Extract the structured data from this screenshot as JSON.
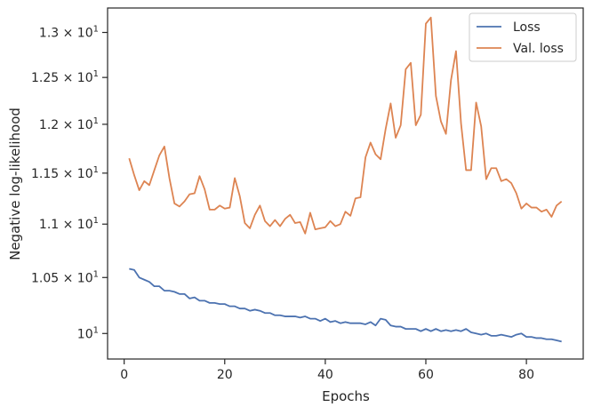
{
  "chart_data": {
    "type": "line",
    "title": "",
    "xlabel": "Epochs",
    "ylabel": "Negative log-likelihood",
    "yscale": "log",
    "xlim": [
      -3.3,
      91.3
    ],
    "ylim": [
      9.78,
      13.28
    ],
    "xticks": [
      0,
      20,
      40,
      60,
      80
    ],
    "xtick_labels": [
      "0",
      "20",
      "40",
      "60",
      "80"
    ],
    "yticks": [
      10.0,
      10.5,
      11.0,
      11.5,
      12.0,
      12.5,
      13.0
    ],
    "ytick_labels": [
      "10^1",
      "1.05 × 10^1",
      "1.1 × 10^1",
      "1.15 × 10^1",
      "1.2 × 10^1",
      "1.25 × 10^1",
      "1.3 × 10^1"
    ],
    "grid": false,
    "legend_position": "top-right",
    "x": [
      1,
      2,
      3,
      4,
      5,
      6,
      7,
      8,
      9,
      10,
      11,
      12,
      13,
      14,
      15,
      16,
      17,
      18,
      19,
      20,
      21,
      22,
      23,
      24,
      25,
      26,
      27,
      28,
      29,
      30,
      31,
      32,
      33,
      34,
      35,
      36,
      37,
      38,
      39,
      40,
      41,
      42,
      43,
      44,
      45,
      46,
      47,
      48,
      49,
      50,
      51,
      52,
      53,
      54,
      55,
      56,
      57,
      58,
      59,
      60,
      61,
      62,
      63,
      64,
      65,
      66,
      67,
      68,
      69,
      70,
      71,
      72,
      73,
      74,
      75,
      76,
      77,
      78,
      79,
      80,
      81,
      82,
      83,
      84,
      85,
      86,
      87
    ],
    "series": [
      {
        "name": "Loss",
        "color": "#4c72b0",
        "values": [
          10.58,
          10.57,
          10.5,
          10.48,
          10.46,
          10.42,
          10.42,
          10.38,
          10.38,
          10.37,
          10.35,
          10.35,
          10.31,
          10.32,
          10.29,
          10.29,
          10.27,
          10.27,
          10.26,
          10.26,
          10.24,
          10.24,
          10.22,
          10.22,
          10.2,
          10.21,
          10.2,
          10.18,
          10.18,
          10.16,
          10.16,
          10.15,
          10.15,
          10.15,
          10.14,
          10.15,
          10.13,
          10.13,
          10.11,
          10.13,
          10.1,
          10.11,
          10.09,
          10.1,
          10.09,
          10.09,
          10.09,
          10.08,
          10.1,
          10.07,
          10.13,
          10.12,
          10.07,
          10.06,
          10.06,
          10.04,
          10.04,
          10.04,
          10.02,
          10.04,
          10.02,
          10.04,
          10.02,
          10.03,
          10.02,
          10.03,
          10.02,
          10.04,
          10.01,
          10.0,
          9.99,
          10.0,
          9.98,
          9.98,
          9.99,
          9.98,
          9.97,
          9.99,
          10.0,
          9.97,
          9.97,
          9.96,
          9.96,
          9.95,
          9.95,
          9.94,
          9.93
        ]
      },
      {
        "name": "Val. loss",
        "color": "#dd8452",
        "values": [
          11.65,
          11.48,
          11.33,
          11.42,
          11.38,
          11.53,
          11.68,
          11.77,
          11.45,
          11.2,
          11.17,
          11.22,
          11.29,
          11.3,
          11.47,
          11.34,
          11.14,
          11.14,
          11.18,
          11.15,
          11.16,
          11.45,
          11.27,
          11.01,
          10.96,
          11.09,
          11.18,
          11.03,
          10.98,
          11.04,
          10.98,
          11.05,
          11.09,
          11.01,
          11.02,
          10.91,
          11.11,
          10.95,
          10.96,
          10.97,
          11.03,
          10.98,
          11.0,
          11.12,
          11.08,
          11.25,
          11.26,
          11.66,
          11.81,
          11.69,
          11.64,
          11.95,
          12.22,
          11.86,
          11.99,
          12.59,
          12.66,
          11.99,
          12.1,
          13.1,
          13.17,
          12.3,
          12.03,
          11.9,
          12.47,
          12.79,
          12.01,
          11.53,
          11.53,
          12.23,
          11.98,
          11.44,
          11.55,
          11.55,
          11.42,
          11.44,
          11.4,
          11.3,
          11.15,
          11.2,
          11.16,
          11.16,
          11.12,
          11.14,
          11.07,
          11.18,
          11.22
        ]
      }
    ]
  }
}
